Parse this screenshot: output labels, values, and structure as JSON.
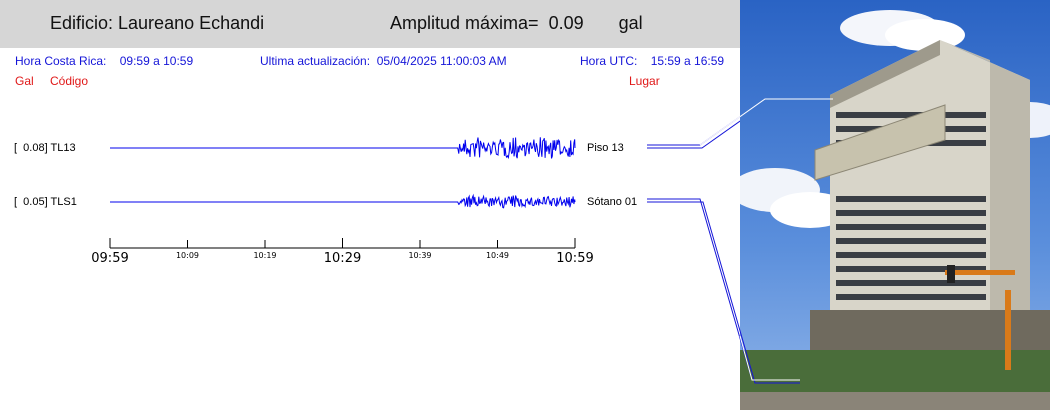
{
  "header": {
    "building": "Edificio: Laureano Echandi",
    "amplitude_label": "Amplitud máxima=",
    "amplitude_value": "0.09",
    "amplitude_unit": "gal"
  },
  "info": {
    "cr_label": "Hora Costa Rica:",
    "cr_range": "09:59 a 10:59",
    "update_label": "Ultima actualización:",
    "update_value": "05/04/2025 11:00:03 AM",
    "utc_label": "Hora UTC:",
    "utc_range": "15:59 a 16:59"
  },
  "columns": {
    "gal": "Gal",
    "code": "Código",
    "place": "Lugar"
  },
  "colors": {
    "trace": "#0000ee",
    "info_text": "#1515d8",
    "column_text": "#e01818",
    "header_bg": "#d6d6d6"
  },
  "chart_data": {
    "type": "line",
    "x_unit": "time",
    "x_range": [
      "09:59",
      "10:59"
    ],
    "major_ticks": [
      "09:59",
      "10:29",
      "10:59"
    ],
    "minor_ticks": [
      "10:09",
      "10:19",
      "10:39",
      "10:49"
    ],
    "series": [
      {
        "code": "TL13",
        "peak_gal": "0.08",
        "location": "Piso 13",
        "event_start": "10:44",
        "event_end": "10:59",
        "relative_amplitude": 1.0
      },
      {
        "code": "TLS1",
        "peak_gal": "0.05",
        "location": "Sótano 01",
        "event_start": "10:44",
        "event_end": "10:59",
        "relative_amplitude": 0.6
      }
    ]
  },
  "photo": {
    "description_icon": "building-photo"
  }
}
